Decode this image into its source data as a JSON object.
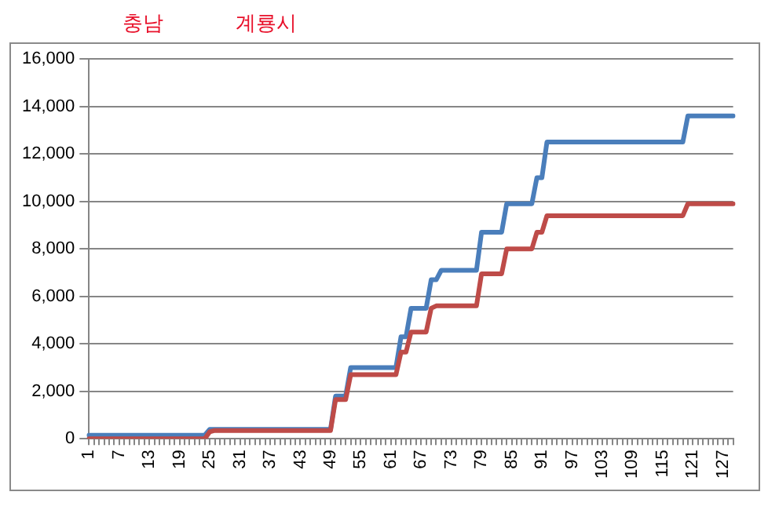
{
  "chart_data": {
    "type": "line",
    "annotations": [
      "충남",
      "계룡시"
    ],
    "categories": [
      "1",
      null,
      null,
      null,
      null,
      null,
      "7",
      null,
      null,
      null,
      null,
      null,
      "13",
      null,
      null,
      null,
      null,
      null,
      "19",
      null,
      null,
      null,
      null,
      null,
      "25",
      null,
      null,
      null,
      null,
      null,
      "31",
      null,
      null,
      null,
      null,
      null,
      "37",
      null,
      null,
      null,
      null,
      null,
      "43",
      null,
      null,
      null,
      null,
      null,
      "49",
      null,
      null,
      null,
      null,
      null,
      "55",
      null,
      null,
      null,
      null,
      null,
      "61",
      null,
      null,
      null,
      null,
      null,
      "67",
      null,
      null,
      null,
      null,
      null,
      "73",
      null,
      null,
      null,
      null,
      null,
      "79",
      null,
      null,
      null,
      null,
      null,
      "85",
      null,
      null,
      null,
      null,
      null,
      "91",
      null,
      null,
      null,
      null,
      null,
      "97",
      null,
      null,
      null,
      null,
      null,
      "103",
      null,
      null,
      null,
      null,
      null,
      "109",
      null,
      null,
      null,
      null,
      null,
      "115",
      null,
      null,
      null,
      null,
      null,
      "121",
      null,
      null,
      null,
      null,
      null,
      "127",
      null,
      null
    ],
    "series": [
      {
        "color": "#4a7ebb",
        "values": [
          150,
          150,
          150,
          150,
          150,
          150,
          150,
          150,
          150,
          150,
          150,
          150,
          150,
          150,
          150,
          150,
          150,
          150,
          150,
          150,
          150,
          150,
          150,
          150,
          400,
          400,
          400,
          400,
          400,
          400,
          400,
          400,
          400,
          400,
          400,
          400,
          400,
          400,
          400,
          400,
          400,
          400,
          400,
          400,
          400,
          400,
          400,
          400,
          400,
          1800,
          1800,
          1800,
          3000,
          3000,
          3000,
          3000,
          3000,
          3000,
          3000,
          3000,
          3000,
          3000,
          4300,
          4300,
          5500,
          5500,
          5500,
          5500,
          6700,
          6700,
          7100,
          7100,
          7100,
          7100,
          7100,
          7100,
          7100,
          7100,
          8700,
          8700,
          8700,
          8700,
          8700,
          9900,
          9900,
          9900,
          9900,
          9900,
          9900,
          11000,
          11000,
          12500,
          12500,
          12500,
          12500,
          12500,
          12500,
          12500,
          12500,
          12500,
          12500,
          12500,
          12500,
          12500,
          12500,
          12500,
          12500,
          12500,
          12500,
          12500,
          12500,
          12500,
          12500,
          12500,
          12500,
          12500,
          12500,
          12500,
          12500,
          13600,
          13600,
          13600,
          13600,
          13600,
          13600,
          13600,
          13600,
          13600,
          13600
        ]
      },
      {
        "color": "#be4b48",
        "values": [
          0,
          0,
          0,
          0,
          0,
          0,
          0,
          0,
          0,
          0,
          0,
          0,
          0,
          0,
          0,
          0,
          0,
          0,
          0,
          0,
          0,
          0,
          0,
          0,
          300,
          350,
          350,
          350,
          350,
          350,
          350,
          350,
          350,
          350,
          350,
          350,
          350,
          350,
          350,
          350,
          350,
          350,
          350,
          350,
          350,
          350,
          350,
          350,
          350,
          1650,
          1650,
          1650,
          2700,
          2700,
          2700,
          2700,
          2700,
          2700,
          2700,
          2700,
          2700,
          2700,
          3650,
          3650,
          4500,
          4500,
          4500,
          4500,
          5500,
          5600,
          5600,
          5600,
          5600,
          5600,
          5600,
          5600,
          5600,
          5600,
          6950,
          6950,
          6950,
          6950,
          6950,
          8000,
          8000,
          8000,
          8000,
          8000,
          8000,
          8700,
          8700,
          9400,
          9400,
          9400,
          9400,
          9400,
          9400,
          9400,
          9400,
          9400,
          9400,
          9400,
          9400,
          9400,
          9400,
          9400,
          9400,
          9400,
          9400,
          9400,
          9400,
          9400,
          9400,
          9400,
          9400,
          9400,
          9400,
          9400,
          9400,
          9900,
          9900,
          9900,
          9900,
          9900,
          9900,
          9900,
          9900,
          9900,
          9900
        ]
      }
    ],
    "ylim": [
      0,
      16000
    ],
    "yticks": [
      {
        "value": 0,
        "label": "0"
      },
      {
        "value": 2000,
        "label": "2,000"
      },
      {
        "value": 4000,
        "label": "4,000"
      },
      {
        "value": 6000,
        "label": "6,000"
      },
      {
        "value": 8000,
        "label": "8,000"
      },
      {
        "value": 10000,
        "label": "10,000"
      },
      {
        "value": 12000,
        "label": "12,000"
      },
      {
        "value": 14000,
        "label": "14,000"
      },
      {
        "value": 16000,
        "label": "16,000"
      }
    ],
    "grid": "y",
    "legend": false,
    "marker": "none",
    "line_style": "solid"
  }
}
